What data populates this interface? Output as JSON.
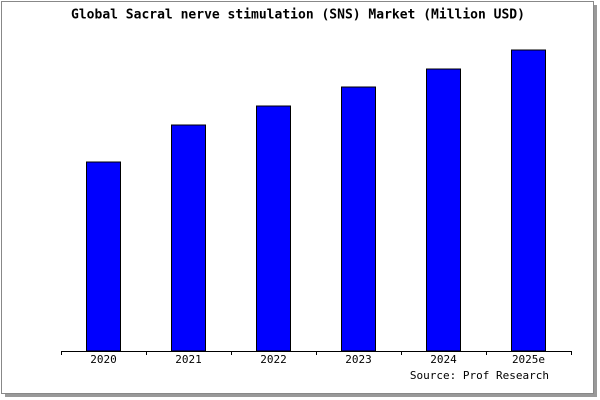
{
  "chart_data": {
    "type": "bar",
    "title": "Global Sacral nerve stimulation (SNS) Market (Million USD)",
    "categories": [
      "2020",
      "2021",
      "2022",
      "2023",
      "2024",
      "2025e"
    ],
    "values": [
      189,
      226,
      245,
      264,
      282,
      301
    ],
    "color": "#0000ff",
    "source": "Source: Prof Research"
  }
}
